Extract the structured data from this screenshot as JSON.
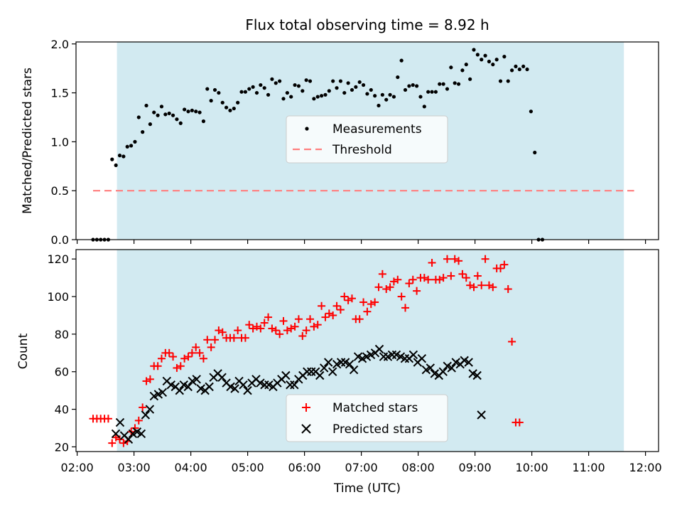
{
  "figure": {
    "title": "Flux total observing time = 8.92 h",
    "xlabel": "Time (UTC)"
  },
  "colors": {
    "shade": "#add8e6",
    "measurement": "#000000",
    "threshold": "#ff7f7f",
    "matched": "#ff0000",
    "predicted": "#000000"
  },
  "chart_data": [
    {
      "type": "scatter",
      "ylabel": "Matched/Predicted stars",
      "xlim_hours": [
        1.98,
        12.23
      ],
      "ylim": [
        0,
        2.02
      ],
      "yticks": [
        0,
        0.5,
        1.0,
        1.5,
        2.0
      ],
      "ytick_labels": [
        "0.0",
        "0.5",
        "1.0",
        "1.5",
        "2.0"
      ],
      "shaded_span_hours": [
        2.7,
        11.62
      ],
      "threshold": {
        "value": 0.5,
        "x_hours": [
          2.28,
          11.8
        ]
      },
      "legend": {
        "position": "center",
        "entries": [
          "Measurements",
          "Threshold"
        ]
      },
      "series": [
        {
          "name": "Measurements",
          "x_start_hours": 2.28,
          "x_step_hours": 0.067,
          "values": [
            0,
            0,
            0,
            0,
            0,
            0.82,
            0.76,
            0.86,
            0.85,
            0.95,
            0.96,
            1.0,
            1.25,
            1.1,
            1.37,
            1.18,
            1.3,
            1.27,
            1.36,
            1.28,
            1.29,
            1.27,
            1.23,
            1.19,
            1.33,
            1.31,
            1.32,
            1.31,
            1.3,
            1.21,
            1.54,
            1.42,
            1.53,
            1.5,
            1.4,
            1.35,
            1.32,
            1.34,
            1.4,
            1.51,
            1.51,
            1.54,
            1.56,
            1.5,
            1.58,
            1.55,
            1.48,
            1.64,
            1.6,
            1.62,
            1.44,
            1.5,
            1.46,
            1.58,
            1.57,
            1.52,
            1.63,
            1.62,
            1.44,
            1.46,
            1.47,
            1.48,
            1.52,
            1.62,
            1.55,
            1.62,
            1.5,
            1.6,
            1.53,
            1.56,
            1.61,
            1.58,
            1.49,
            1.53,
            1.47,
            1.37,
            1.48,
            1.43,
            1.48,
            1.46,
            1.66,
            1.83,
            1.53,
            1.57,
            1.58,
            1.57,
            1.46,
            1.36,
            1.51,
            1.51,
            1.51,
            1.59,
            1.59,
            1.54,
            1.76,
            1.6,
            1.59,
            1.73,
            1.79,
            1.64,
            1.94,
            1.89,
            1.84,
            1.88,
            1.82,
            1.79,
            1.84,
            1.62,
            1.87,
            1.62,
            1.73,
            1.77,
            1.74,
            1.77,
            1.74,
            1.31,
            0.89,
            0,
            0
          ]
        }
      ]
    },
    {
      "type": "scatter",
      "ylabel": "Count",
      "xlim_hours": [
        1.98,
        12.23
      ],
      "ylim": [
        17.5,
        125
      ],
      "yticks": [
        20,
        40,
        60,
        80,
        100,
        120
      ],
      "ytick_labels": [
        "20",
        "40",
        "60",
        "80",
        "100",
        "120"
      ],
      "xticks_hours": [
        2,
        3,
        4,
        5,
        6,
        7,
        8,
        9,
        10,
        11,
        12
      ],
      "xtick_labels": [
        "02:00",
        "03:00",
        "04:00",
        "05:00",
        "06:00",
        "07:00",
        "08:00",
        "09:00",
        "10:00",
        "11:00",
        "12:00"
      ],
      "shaded_span_hours": [
        2.7,
        11.62
      ],
      "legend": {
        "position": "lower center",
        "entries": [
          "Matched stars",
          "Predicted stars"
        ]
      },
      "series": [
        {
          "name": "Matched stars",
          "marker": "plus",
          "x_start_hours": 2.28,
          "x_step_hours": 0.067,
          "values": [
            35,
            35,
            35,
            35,
            35,
            22,
            25,
            24,
            22,
            23,
            28,
            30,
            34,
            41,
            55,
            56,
            63,
            63,
            67,
            70,
            70,
            68,
            62,
            63,
            67,
            68,
            70,
            73,
            70,
            67,
            77,
            73,
            77,
            82,
            81,
            78,
            78,
            78,
            82,
            78,
            78,
            85,
            83,
            84,
            83,
            86,
            89,
            83,
            82,
            80,
            87,
            82,
            83,
            84,
            88,
            79,
            82,
            88,
            84,
            85,
            95,
            89,
            91,
            90,
            95,
            93,
            100,
            98,
            99,
            88,
            88,
            97,
            92,
            96,
            97,
            105,
            112,
            104,
            105,
            108,
            109,
            100,
            94,
            107,
            109,
            103,
            110,
            110,
            109,
            118,
            109,
            109,
            110,
            120,
            111,
            120,
            119,
            112,
            110,
            106,
            105,
            111,
            106,
            120,
            106,
            105,
            115,
            115,
            117,
            104,
            76,
            33,
            33
          ]
        },
        {
          "name": "Predicted stars",
          "marker": "x",
          "x_start_hours": 2.68,
          "x_step_hours": 0.0748,
          "values": [
            27,
            33,
            26,
            24,
            27,
            28,
            27,
            37,
            40,
            47,
            48,
            49,
            55,
            53,
            52,
            50,
            53,
            52,
            55,
            56,
            51,
            50,
            52,
            57,
            59,
            57,
            54,
            52,
            51,
            55,
            53,
            50,
            54,
            56,
            54,
            53,
            53,
            52,
            54,
            56,
            58,
            53,
            53,
            56,
            58,
            60,
            60,
            60,
            58,
            62,
            65,
            60,
            64,
            65,
            65,
            64,
            61,
            68,
            67,
            68,
            69,
            70,
            72,
            68,
            68,
            69,
            69,
            68,
            67,
            67,
            69,
            65,
            67,
            61,
            62,
            59,
            58,
            60,
            63,
            62,
            65,
            64,
            66,
            65,
            59,
            58,
            37
          ]
        }
      ]
    }
  ]
}
